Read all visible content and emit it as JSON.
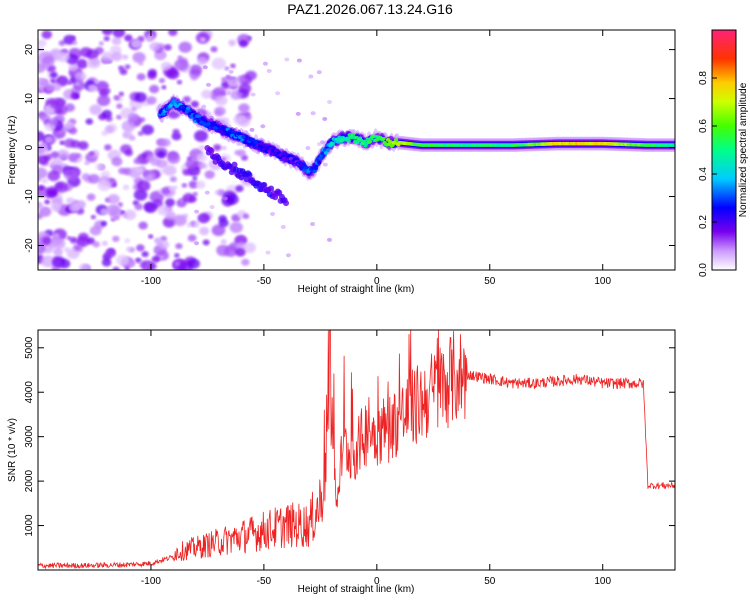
{
  "title": "PAZ1.2026.067.13.24.G16",
  "chart_data": [
    {
      "type": "heatmap",
      "xlabel": "Height of straight line (km)",
      "ylabel": "Frequency (Hz)",
      "xlim": [
        -150,
        132
      ],
      "ylim": [
        -25,
        24
      ],
      "xticks": [
        -100,
        -50,
        0,
        50,
        100
      ],
      "yticks": [
        -20,
        -10,
        0,
        10,
        20
      ],
      "colorbar": {
        "label": "Normalized spectral amplitude",
        "range": [
          0.0,
          1.0
        ],
        "ticks": [
          "0.0",
          "0.2",
          "0.4",
          "0.6",
          "0.8"
        ],
        "colormap": "white-violet-blue-cyan-green-yellow-orange-red-pink"
      },
      "ridge": {
        "description_points_x": [
          -95,
          -90,
          -85,
          -80,
          -75,
          -70,
          -65,
          -60,
          -55,
          -50,
          -45,
          -40,
          -35,
          -30,
          -27,
          -25,
          -20,
          -15,
          -10,
          -5,
          0,
          5,
          10,
          20,
          40,
          60,
          80,
          100,
          120,
          132
        ],
        "description_points_y": [
          7,
          9,
          8,
          6,
          5,
          4,
          3,
          2,
          1,
          0,
          -1,
          -2,
          -3,
          -5,
          -4,
          -2,
          1,
          2,
          2,
          1,
          2,
          1,
          1,
          0.5,
          0.5,
          0.5,
          0.8,
          0.8,
          0.5,
          0.5
        ],
        "amplitude": [
          0.3,
          0.35,
          0.3,
          0.3,
          0.25,
          0.25,
          0.3,
          0.3,
          0.25,
          0.2,
          0.2,
          0.2,
          0.2,
          0.3,
          0.3,
          0.3,
          0.4,
          0.45,
          0.5,
          0.5,
          0.55,
          0.6,
          0.7,
          0.55,
          0.5,
          0.5,
          0.75,
          0.75,
          0.55,
          0.45
        ]
      }
    },
    {
      "type": "line",
      "xlabel": "Height of straight line (km)",
      "ylabel": "SNR (10 * v/v)",
      "xlim": [
        -150,
        132
      ],
      "ylim": [
        0,
        5400
      ],
      "xticks": [
        -100,
        -50,
        0,
        50,
        100
      ],
      "yticks": [
        1000,
        2000,
        3000,
        4000,
        5000
      ],
      "color": "#ee2222",
      "series": [
        {
          "x": [
            -150,
            -130,
            -110,
            -100,
            -90,
            -80,
            -70,
            -60,
            -50,
            -40,
            -30,
            -25,
            -22,
            -20,
            -18,
            -15,
            -10,
            -5,
            0,
            5,
            10,
            15,
            20,
            25,
            30,
            35,
            40,
            50,
            60,
            70,
            80,
            90,
            100,
            110,
            115,
            118,
            120,
            125,
            132
          ],
          "values": [
            100,
            100,
            120,
            150,
            300,
            400,
            500,
            600,
            700,
            800,
            800,
            1200,
            2500,
            3800,
            1500,
            2800,
            2600,
            3100,
            3100,
            3200,
            3400,
            3600,
            3800,
            4000,
            4200,
            4350,
            4400,
            4300,
            4200,
            4200,
            4250,
            4300,
            4200,
            4200,
            4200,
            4200,
            1900,
            1900,
            1900
          ]
        }
      ]
    }
  ]
}
